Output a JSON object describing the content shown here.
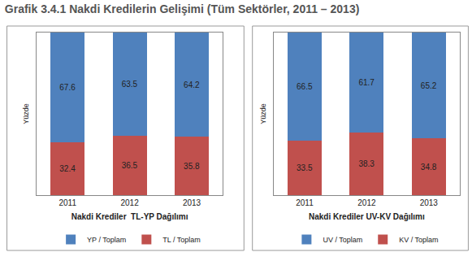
{
  "title": "Grafik 3.4.1 Nakdi Kredilerin Gelişimi (Tüm Sektörler, 2011 – 2013)",
  "chart_data": [
    {
      "type": "bar",
      "stacked": true,
      "data_labels": true,
      "tick_labels": "x",
      "grid": false,
      "legend": "bottom",
      "y_label": "Yüzde",
      "x_label": "Nakdi Krediler  TL-YP Dağılımı",
      "categories": [
        "2011",
        "2012",
        "2013"
      ],
      "ylim": [
        0,
        100
      ],
      "series": [
        {
          "name": "TL / Toplam",
          "color": "#c0504d",
          "values": [
            32.4,
            36.5,
            35.8
          ]
        },
        {
          "name": "YP / Toplam",
          "color": "#4f81bd",
          "values": [
            67.6,
            63.5,
            64.2
          ]
        }
      ]
    },
    {
      "type": "bar",
      "stacked": true,
      "data_labels": true,
      "tick_labels": "x",
      "grid": false,
      "legend": "bottom",
      "y_label": "Yüzde",
      "x_label": "Nakdi Krediler UV-KV Dağılımı",
      "categories": [
        "2011",
        "2012",
        "2013"
      ],
      "ylim": [
        0,
        100
      ],
      "series": [
        {
          "name": "KV / Toplam",
          "color": "#c0504d",
          "values": [
            33.5,
            38.3,
            34.8
          ]
        },
        {
          "name": "UV / Toplam",
          "color": "#4f81bd",
          "values": [
            66.5,
            61.7,
            65.2
          ]
        }
      ]
    }
  ]
}
